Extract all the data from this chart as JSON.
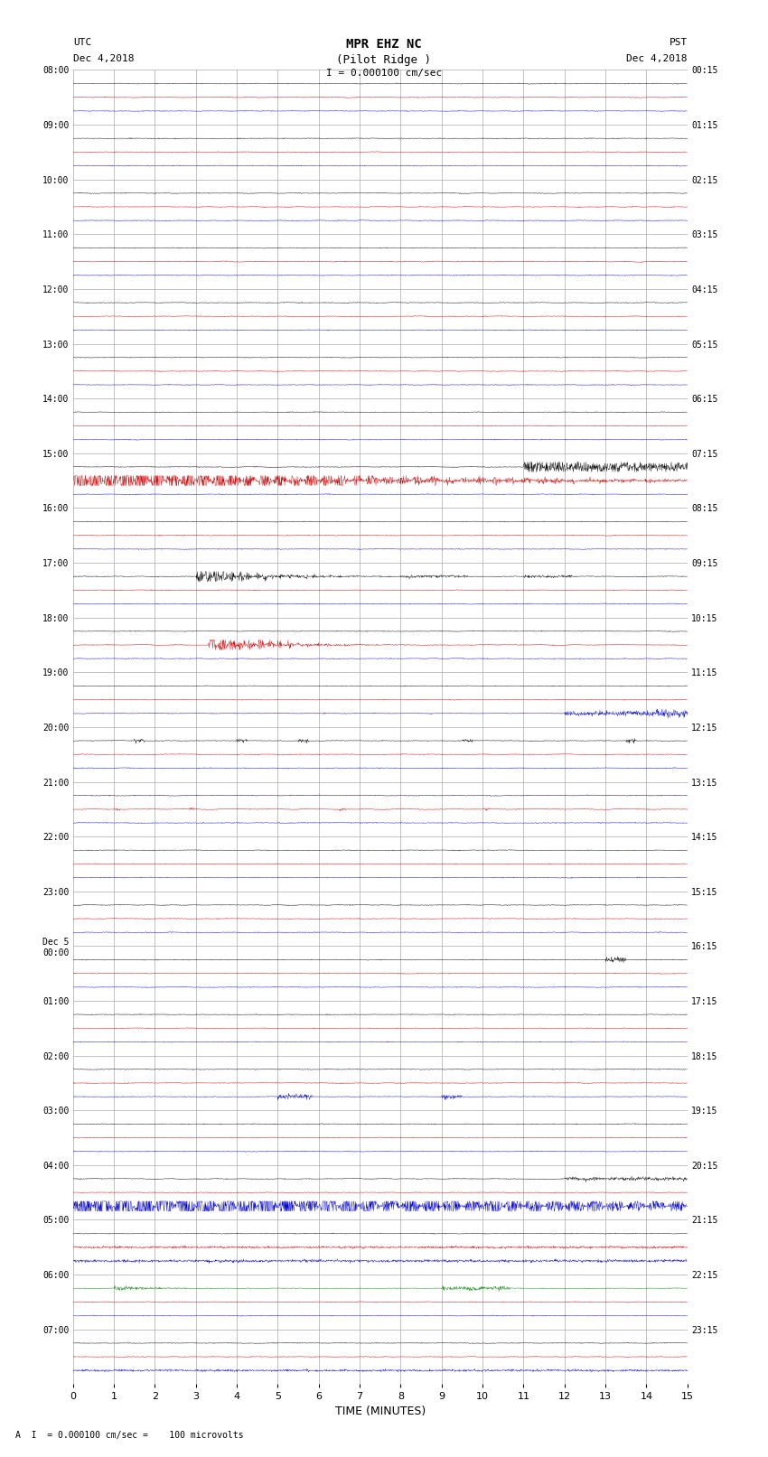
{
  "title_line1": "MPR EHZ NC",
  "title_line2": "(Pilot Ridge )",
  "scale_text": "I = 0.000100 cm/sec",
  "left_label": "UTC",
  "left_date": "Dec 4,2018",
  "right_label": "PST",
  "right_date": "Dec 4,2018",
  "bottom_label": "TIME (MINUTES)",
  "bottom_note": "A  I  = 0.000100 cm/sec =    100 microvolts",
  "xlabel_ticks": [
    0,
    1,
    2,
    3,
    4,
    5,
    6,
    7,
    8,
    9,
    10,
    11,
    12,
    13,
    14,
    15
  ],
  "left_times": [
    "08:00",
    "09:00",
    "10:00",
    "11:00",
    "12:00",
    "13:00",
    "14:00",
    "15:00",
    "16:00",
    "17:00",
    "18:00",
    "19:00",
    "20:00",
    "21:00",
    "22:00",
    "23:00",
    "Dec 5\n00:00",
    "01:00",
    "02:00",
    "03:00",
    "04:00",
    "05:00",
    "06:00",
    "07:00"
  ],
  "right_times": [
    "00:15",
    "01:15",
    "02:15",
    "03:15",
    "04:15",
    "05:15",
    "06:15",
    "07:15",
    "08:15",
    "09:15",
    "10:15",
    "11:15",
    "12:15",
    "13:15",
    "14:15",
    "15:15",
    "16:15",
    "17:15",
    "18:15",
    "19:15",
    "20:15",
    "21:15",
    "22:15",
    "23:15"
  ],
  "num_rows": 24,
  "minutes": 15,
  "sub_traces": 3,
  "bg_color": "#ffffff",
  "grid_color": "#aaaaaa",
  "fig_width": 8.5,
  "fig_height": 16.13,
  "sub_colors": [
    "#000000",
    "#cc0000",
    "#0000cc",
    "#008800"
  ],
  "noise_scale": 0.006
}
